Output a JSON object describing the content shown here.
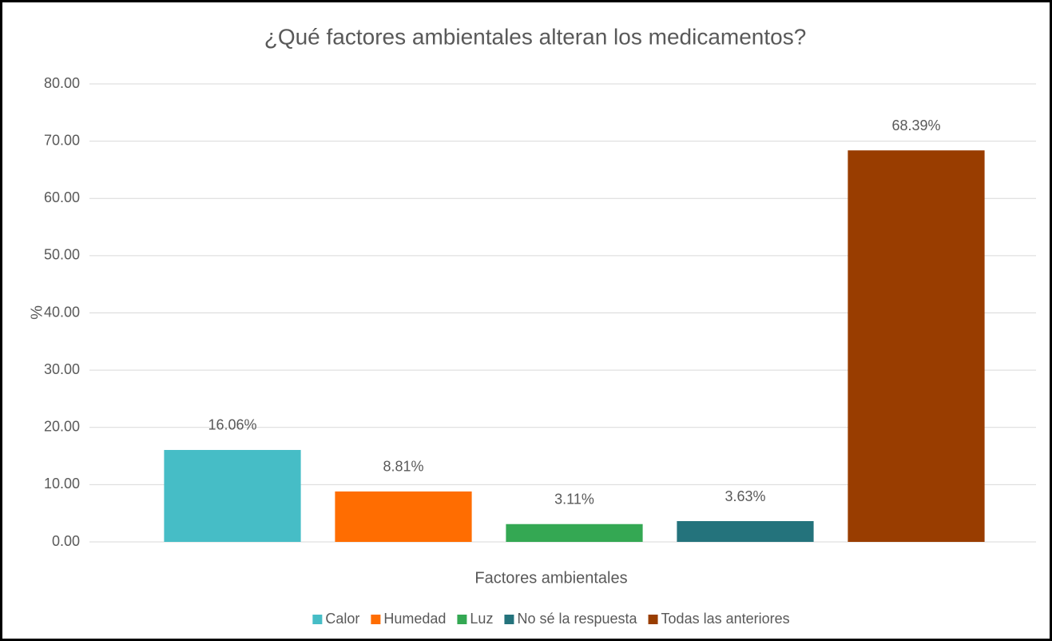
{
  "chart_data": {
    "type": "bar",
    "title": "¿Qué factores ambientales alteran los medicamentos?",
    "xlabel": "Factores ambientales",
    "ylabel": "%",
    "categories": [
      "Calor",
      "Humedad",
      "Luz",
      "No sé la respuesta",
      "Todas las anteriores"
    ],
    "values": [
      16.06,
      8.81,
      3.11,
      3.63,
      68.39
    ],
    "value_labels": [
      "16.06%",
      "8.81%",
      "3.11%",
      "3.63%",
      "68.39%"
    ],
    "colors": [
      "#46bdc6",
      "#ff6d01",
      "#34a853",
      "#24737c",
      "#993d00"
    ],
    "ylim": [
      0,
      80
    ],
    "yticks": [
      {
        "value": 0,
        "label": "0.00"
      },
      {
        "value": 10,
        "label": "10.00"
      },
      {
        "value": 20,
        "label": "20.00"
      },
      {
        "value": 30,
        "label": "30.00"
      },
      {
        "value": 40,
        "label": "40.00"
      },
      {
        "value": 50,
        "label": "50.00"
      },
      {
        "value": 60,
        "label": "60.00"
      },
      {
        "value": 70,
        "label": "70.00"
      },
      {
        "value": 80,
        "label": "80.00"
      }
    ],
    "grid": true,
    "legend": "bottom"
  }
}
